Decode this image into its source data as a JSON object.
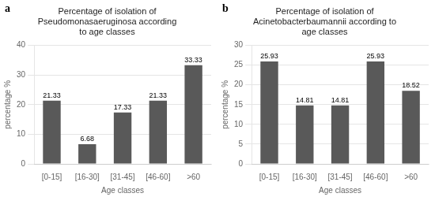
{
  "chart_data": [
    {
      "type": "bar",
      "title": [
        "Percentage of isolation of",
        "Pseudomonasaeruginosa according",
        "to age classes"
      ],
      "categories": [
        "[0-15]",
        "[16-30]",
        "[31-45]",
        "[46-60]",
        ">60"
      ],
      "values": [
        21.33,
        6.68,
        17.33,
        21.33,
        33.33
      ],
      "color": "#595959",
      "xlabel": "Age classes",
      "ylabel": "percentage %",
      "ylim": [
        0,
        40
      ],
      "yticks": [
        0,
        10,
        20,
        30,
        40
      ],
      "grid": true,
      "data_labels": true,
      "annotations": [
        "a"
      ]
    },
    {
      "type": "bar",
      "title": [
        "Percentage of isolation of",
        "Acinetobacterbaumannii according to",
        "age classes"
      ],
      "categories": [
        "[0-15]",
        "[16-30]",
        "[31-45]",
        "[46-60]",
        ">60"
      ],
      "values": [
        25.93,
        14.81,
        14.81,
        25.93,
        18.52
      ],
      "color": "#595959",
      "xlabel": "Age classes",
      "ylabel": "percentage %",
      "ylim": [
        0,
        30
      ],
      "yticks": [
        0,
        5,
        10,
        15,
        20,
        25,
        30
      ],
      "grid": true,
      "data_labels": true,
      "annotations": [
        "b"
      ]
    }
  ]
}
